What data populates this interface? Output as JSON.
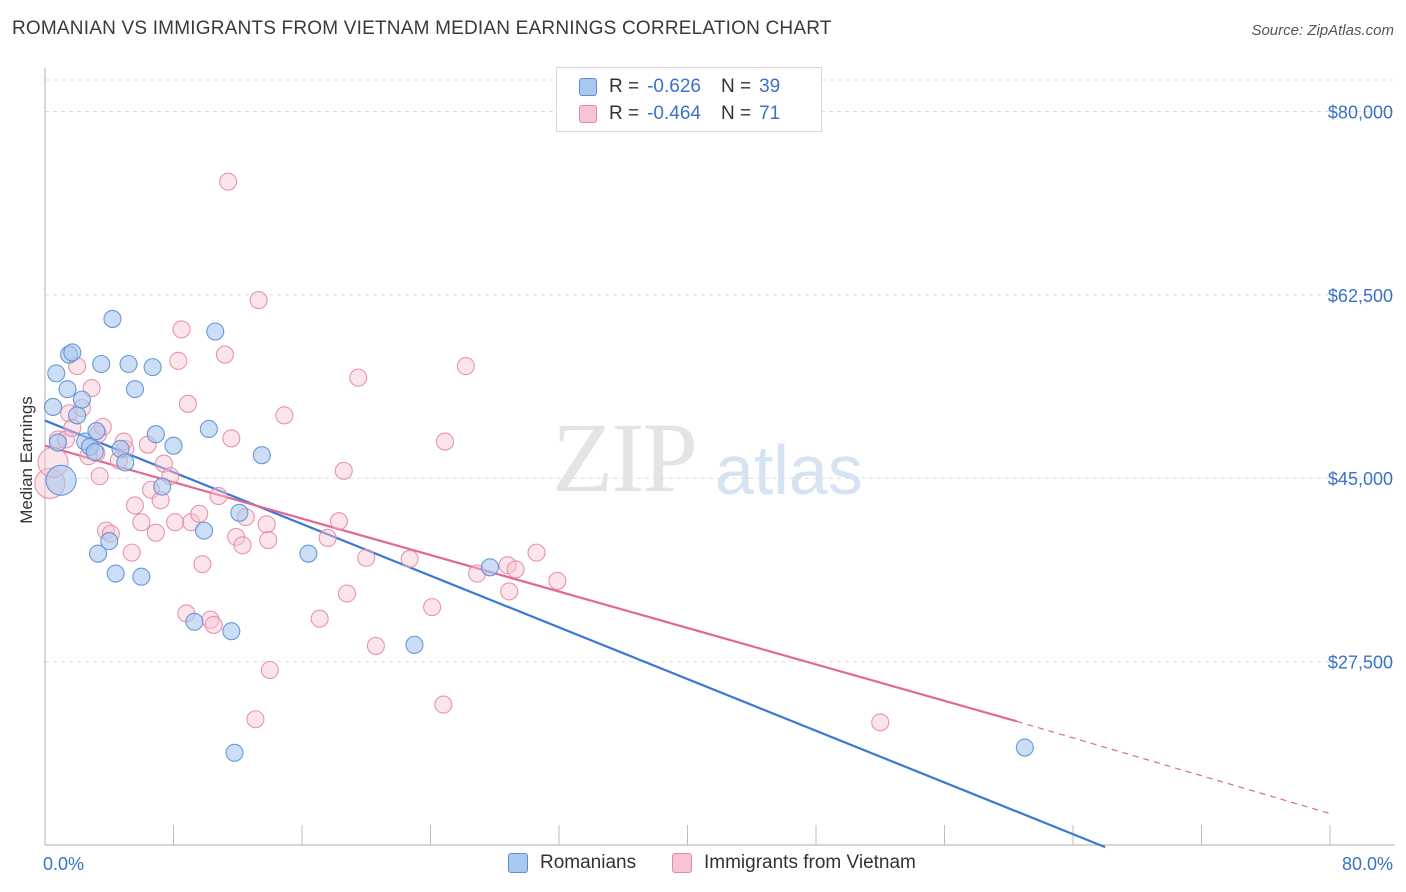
{
  "title": "ROMANIAN VS IMMIGRANTS FROM VIETNAM MEDIAN EARNINGS CORRELATION CHART",
  "source": "Source: ZipAtlas.com",
  "watermark": {
    "zip": "ZIP",
    "atlas": "atlas"
  },
  "legend": {
    "r_label": "R =",
    "n_label": "N =",
    "rows": [
      {
        "r": "-0.626",
        "n": "39",
        "color": "#a9c8ef",
        "border": "#5a8fd6"
      },
      {
        "r": "-0.464",
        "n": "71",
        "color": "#f8c3d2",
        "border": "#e48aa6"
      }
    ]
  },
  "bottom_legend": [
    {
      "label": "Romanians",
      "color": "#a9c8ef",
      "border": "#5a8fd6"
    },
    {
      "label": "Immigrants from Vietnam",
      "color": "#f8c3d2",
      "border": "#e48aa6"
    }
  ],
  "chart_data": {
    "type": "scatter",
    "title": "ROMANIAN VS IMMIGRANTS FROM VIETNAM MEDIAN EARNINGS CORRELATION CHART",
    "xlabel": "",
    "ylabel": "Median Earnings",
    "xlim": [
      0,
      80
    ],
    "ylim": [
      10000,
      83000
    ],
    "x_tick_labels": [
      "0.0%",
      "80.0%"
    ],
    "y_ticks": [
      27500,
      45000,
      62500,
      80000
    ],
    "y_tick_labels": [
      "$27,500",
      "$45,000",
      "$62,500",
      "$80,000"
    ],
    "grid": true,
    "legend_position": "top-center",
    "series": [
      {
        "name": "Romanians",
        "color": "#5a8fd6",
        "fill": "#a9c8ef",
        "points": [
          [
            0.5,
            51800
          ],
          [
            0.7,
            55000
          ],
          [
            1.0,
            44800
          ],
          [
            1.5,
            56800
          ],
          [
            1.7,
            57000
          ],
          [
            1.4,
            53500
          ],
          [
            2.0,
            51000
          ],
          [
            2.3,
            52500
          ],
          [
            2.5,
            48500
          ],
          [
            2.8,
            48000
          ],
          [
            3.2,
            49500
          ],
          [
            3.1,
            47500
          ],
          [
            3.5,
            55900
          ],
          [
            3.3,
            37800
          ],
          [
            4.2,
            60200
          ],
          [
            4.0,
            39000
          ],
          [
            4.4,
            35900
          ],
          [
            4.7,
            47800
          ],
          [
            5.2,
            55900
          ],
          [
            5.6,
            53500
          ],
          [
            6.0,
            35600
          ],
          [
            6.7,
            55600
          ],
          [
            6.9,
            49200
          ],
          [
            7.3,
            44200
          ],
          [
            8.0,
            48100
          ],
          [
            5.0,
            46500
          ],
          [
            9.3,
            31300
          ],
          [
            9.9,
            40000
          ],
          [
            10.2,
            49700
          ],
          [
            10.6,
            59000
          ],
          [
            11.6,
            30400
          ],
          [
            11.8,
            18800
          ],
          [
            12.1,
            41700
          ],
          [
            13.5,
            47200
          ],
          [
            16.4,
            37800
          ],
          [
            23.0,
            29100
          ],
          [
            27.7,
            36500
          ],
          [
            61.0,
            19300
          ],
          [
            0.8,
            48400
          ]
        ]
      },
      {
        "name": "Immigrants from Vietnam",
        "color": "#e48aa6",
        "fill": "#f8c3d2",
        "points": [
          [
            0.3,
            44500
          ],
          [
            0.5,
            46500
          ],
          [
            0.8,
            48700
          ],
          [
            1.3,
            48700
          ],
          [
            1.5,
            51200
          ],
          [
            2.0,
            55700
          ],
          [
            2.3,
            51700
          ],
          [
            2.9,
            53600
          ],
          [
            3.2,
            47400
          ],
          [
            3.3,
            49200
          ],
          [
            3.4,
            45200
          ],
          [
            3.6,
            49900
          ],
          [
            3.8,
            40000
          ],
          [
            4.1,
            39700
          ],
          [
            4.6,
            46700
          ],
          [
            5.0,
            47800
          ],
          [
            5.4,
            37900
          ],
          [
            5.6,
            42400
          ],
          [
            6.0,
            40800
          ],
          [
            6.4,
            48200
          ],
          [
            6.6,
            43900
          ],
          [
            6.9,
            39800
          ],
          [
            7.2,
            42900
          ],
          [
            7.4,
            46400
          ],
          [
            7.8,
            45200
          ],
          [
            8.1,
            40800
          ],
          [
            8.3,
            56200
          ],
          [
            8.5,
            59200
          ],
          [
            8.8,
            32100
          ],
          [
            9.1,
            40800
          ],
          [
            9.6,
            41600
          ],
          [
            9.8,
            36800
          ],
          [
            10.3,
            31500
          ],
          [
            10.5,
            31000
          ],
          [
            10.8,
            43300
          ],
          [
            11.2,
            56800
          ],
          [
            11.4,
            73300
          ],
          [
            11.6,
            48800
          ],
          [
            11.9,
            39400
          ],
          [
            12.3,
            38600
          ],
          [
            13.1,
            22000
          ],
          [
            13.3,
            62000
          ],
          [
            13.8,
            40600
          ],
          [
            13.9,
            39100
          ],
          [
            14.0,
            26700
          ],
          [
            14.9,
            51000
          ],
          [
            17.1,
            31600
          ],
          [
            17.6,
            39300
          ],
          [
            18.3,
            40900
          ],
          [
            18.6,
            45700
          ],
          [
            18.8,
            34000
          ],
          [
            19.5,
            54600
          ],
          [
            20.0,
            37400
          ],
          [
            20.6,
            29000
          ],
          [
            22.7,
            37300
          ],
          [
            24.1,
            32700
          ],
          [
            24.8,
            23400
          ],
          [
            24.9,
            48500
          ],
          [
            26.2,
            55700
          ],
          [
            26.9,
            35900
          ],
          [
            28.8,
            36700
          ],
          [
            28.9,
            34200
          ],
          [
            29.3,
            36300
          ],
          [
            30.6,
            37900
          ],
          [
            31.9,
            35200
          ],
          [
            52.0,
            21700
          ],
          [
            8.9,
            52100
          ],
          [
            1.7,
            49800
          ],
          [
            2.7,
            47100
          ],
          [
            4.9,
            48500
          ],
          [
            12.5,
            41300
          ]
        ]
      }
    ],
    "trend_lines": [
      {
        "series": "Romanians",
        "color": "#3a78d4",
        "x": [
          0,
          66
        ],
        "y": [
          50500,
          9800
        ],
        "dashed_to": null
      },
      {
        "series": "Immigrants from Vietnam",
        "color": "#e06892",
        "x": [
          0,
          60.5
        ],
        "y": [
          48100,
          21800
        ],
        "dashed_to": [
          80,
          13000
        ]
      }
    ]
  }
}
